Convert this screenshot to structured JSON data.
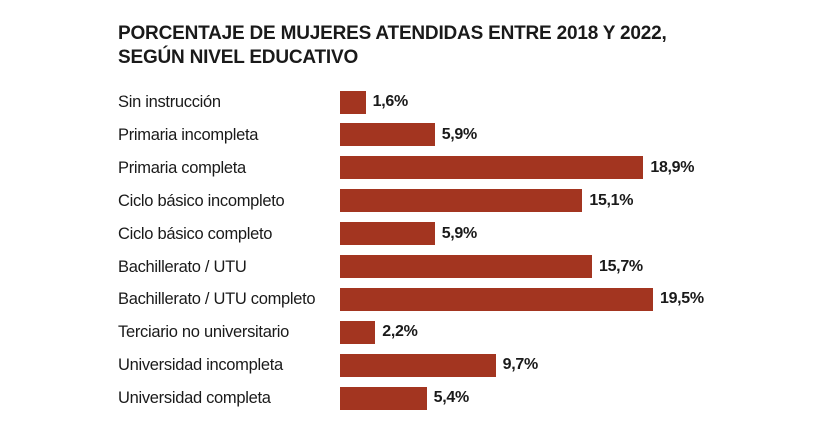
{
  "chart_data": {
    "type": "bar",
    "orientation": "horizontal",
    "title_line1": "PORCENTAJE DE MUJERES ATENDIDAS ENTRE 2018 Y 2022,",
    "title_line2": "SEGÚN NIVEL EDUCATIVO",
    "categories": [
      "Sin instrucción",
      "Primaria incompleta",
      "Primaria completa",
      "Ciclo básico incompleto",
      "Ciclo básico completo",
      "Bachillerato / UTU",
      "Bachillerato / UTU completo",
      "Terciario no universitario",
      "Universidad incompleta",
      "Universidad completa"
    ],
    "values": [
      1.6,
      5.9,
      18.9,
      15.1,
      5.9,
      15.7,
      19.5,
      2.2,
      9.7,
      5.4
    ],
    "value_labels": [
      "1,6%",
      "5,9%",
      "18,9%",
      "15,1%",
      "5,9%",
      "15,7%",
      "19,5%",
      "2,2%",
      "9,7%",
      "5,4%"
    ],
    "bar_color": "#a33520",
    "grid": false,
    "legend": "none"
  }
}
